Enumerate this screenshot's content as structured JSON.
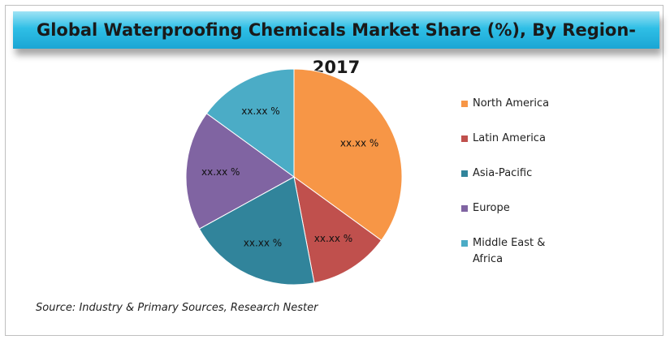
{
  "chart_data": {
    "type": "pie",
    "title": "Global Waterproofing Chemicals Market Share (%), By Region- 2017",
    "categories": [
      "North America",
      "Latin America",
      "Asia-Pacific",
      "Europe",
      "Middle East & Africa"
    ],
    "values": [
      35,
      12,
      20,
      18,
      15
    ],
    "value_labels": [
      "xx.xx %",
      "xx.xx %",
      "xx.xx %",
      "xx.xx %",
      "xx.xx %"
    ],
    "colors": [
      "#f79646",
      "#c0504d",
      "#31849b",
      "#8064a2",
      "#4bacc6"
    ],
    "source": "Source: Industry & Primary Sources, Research Nester"
  }
}
